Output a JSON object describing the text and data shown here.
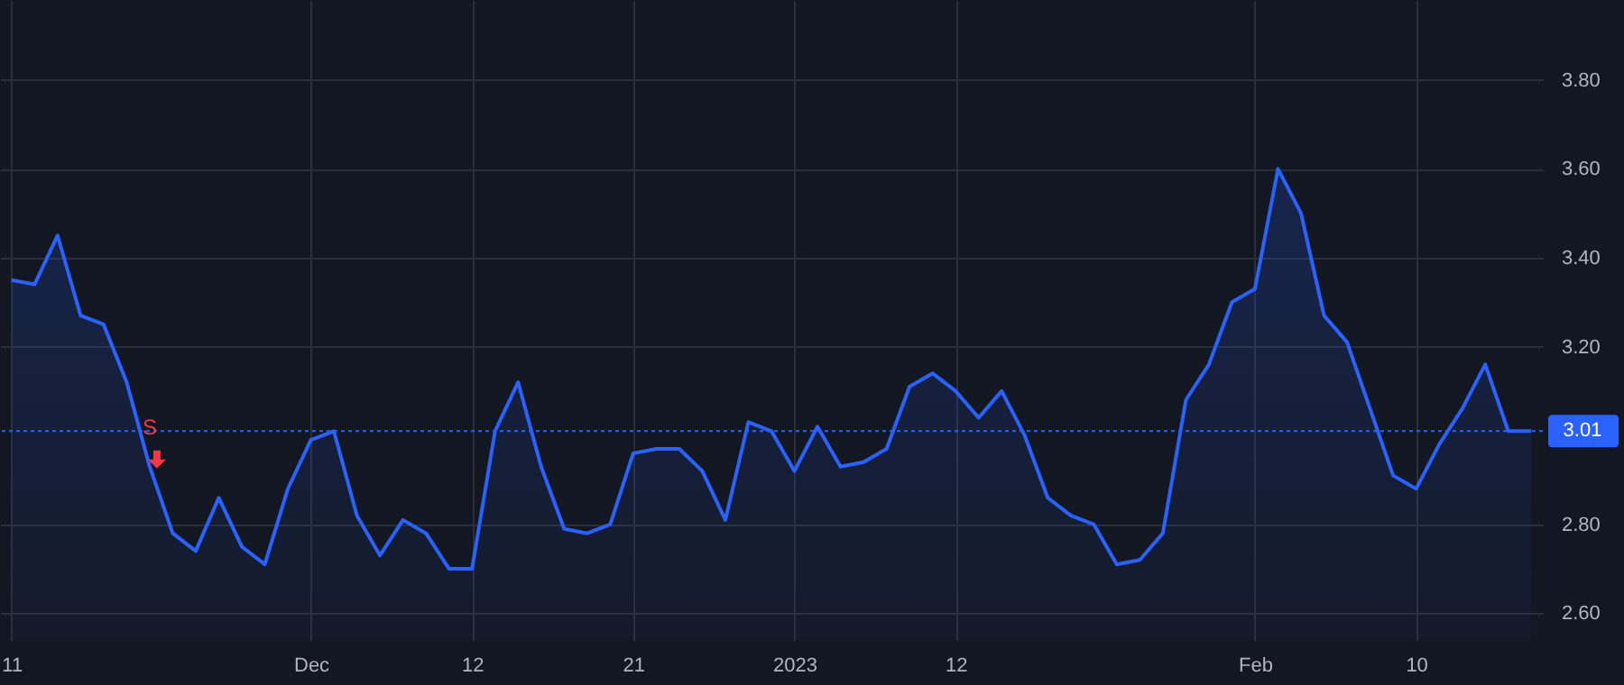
{
  "chart_data": {
    "type": "area",
    "categories": [
      "11",
      null,
      null,
      null,
      null,
      null,
      null,
      null,
      null,
      null,
      null,
      null,
      null,
      "Dec",
      null,
      null,
      null,
      null,
      null,
      null,
      "12",
      null,
      null,
      null,
      null,
      null,
      null,
      "21",
      null,
      null,
      null,
      null,
      null,
      null,
      "2023",
      null,
      null,
      null,
      null,
      null,
      null,
      "12",
      null,
      null,
      null,
      null,
      null,
      null,
      null,
      null,
      null,
      null,
      null,
      null,
      "Feb",
      null,
      null,
      null,
      null,
      null,
      null,
      "10",
      null,
      null,
      null,
      null,
      null
    ],
    "series": [
      {
        "color": "#2962ff",
        "values": [
          3.35,
          3.34,
          3.45,
          3.27,
          3.25,
          3.12,
          2.93,
          2.78,
          2.74,
          2.86,
          2.75,
          2.71,
          2.88,
          2.99,
          3.01,
          2.82,
          2.73,
          2.81,
          2.78,
          2.7,
          2.7,
          3.01,
          3.12,
          2.93,
          2.79,
          2.78,
          2.8,
          2.96,
          2.97,
          2.97,
          2.92,
          2.81,
          3.03,
          3.01,
          2.92,
          3.02,
          2.93,
          2.94,
          2.97,
          3.11,
          3.14,
          3.1,
          3.04,
          3.1,
          3.0,
          2.86,
          2.82,
          2.8,
          2.71,
          2.72,
          2.78,
          3.08,
          3.16,
          3.3,
          3.33,
          3.6,
          3.5,
          3.27,
          3.21,
          3.06,
          2.91,
          2.88,
          2.98,
          3.06,
          3.16,
          3.01,
          3.01
        ]
      }
    ],
    "ylim": [
      2.54,
      3.98
    ],
    "yticks": [
      {
        "value": 2.6,
        "label": "2.60"
      },
      {
        "value": 2.8,
        "label": "2.80"
      },
      {
        "value": 3.2,
        "label": "3.20"
      },
      {
        "value": 3.4,
        "label": "3.40"
      },
      {
        "value": 3.6,
        "label": "3.60"
      },
      {
        "value": 3.8,
        "label": "3.80"
      }
    ],
    "grid": true,
    "ref_lines": [
      {
        "axis": "y",
        "value": 3.01,
        "label": "3.01",
        "color": "#2962ff",
        "line_style": "dotted"
      }
    ],
    "annotations": [
      {
        "text": "S",
        "y": 2.93
      }
    ]
  }
}
